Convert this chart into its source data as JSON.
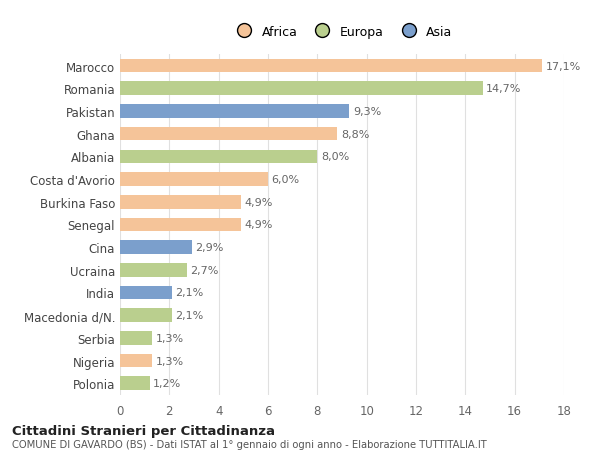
{
  "categories": [
    "Marocco",
    "Romania",
    "Pakistan",
    "Ghana",
    "Albania",
    "Costa d'Avorio",
    "Burkina Faso",
    "Senegal",
    "Cina",
    "Ucraina",
    "India",
    "Macedonia d/N.",
    "Serbia",
    "Nigeria",
    "Polonia"
  ],
  "values": [
    17.1,
    14.7,
    9.3,
    8.8,
    8.0,
    6.0,
    4.9,
    4.9,
    2.9,
    2.7,
    2.1,
    2.1,
    1.3,
    1.3,
    1.2
  ],
  "labels": [
    "17,1%",
    "14,7%",
    "9,3%",
    "8,8%",
    "8,0%",
    "6,0%",
    "4,9%",
    "4,9%",
    "2,9%",
    "2,7%",
    "2,1%",
    "2,1%",
    "1,3%",
    "1,3%",
    "1,2%"
  ],
  "colors": [
    "#F5C499",
    "#BACF8E",
    "#7B9FCC",
    "#F5C499",
    "#BACF8E",
    "#F5C499",
    "#F5C499",
    "#F5C499",
    "#7B9FCC",
    "#BACF8E",
    "#7B9FCC",
    "#BACF8E",
    "#BACF8E",
    "#F5C499",
    "#BACF8E"
  ],
  "legend_labels": [
    "Africa",
    "Europa",
    "Asia"
  ],
  "legend_colors": [
    "#F5C499",
    "#BACF8E",
    "#7B9FCC"
  ],
  "title": "Cittadini Stranieri per Cittadinanza",
  "subtitle": "COMUNE DI GAVARDO (BS) - Dati ISTAT al 1° gennaio di ogni anno - Elaborazione TUTTITALIA.IT",
  "xlim": [
    0,
    18
  ],
  "xticks": [
    0,
    2,
    4,
    6,
    8,
    10,
    12,
    14,
    16,
    18
  ],
  "background_color": "#ffffff",
  "grid_color": "#e0e0e0"
}
